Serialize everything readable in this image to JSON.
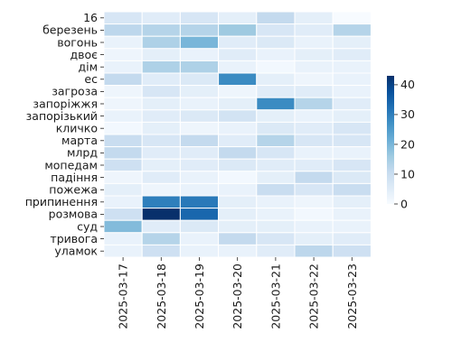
{
  "chart_data": {
    "type": "heatmap",
    "title": "",
    "xlabel": "",
    "ylabel": "",
    "x": [
      "2025-03-17",
      "2025-03-18",
      "2025-03-19",
      "2025-03-20",
      "2025-03-21",
      "2025-03-22",
      "2025-03-23"
    ],
    "y": [
      "16",
      "березень",
      "вогонь",
      "двоє",
      "дім",
      "ес",
      "загроза",
      "запоріжжя",
      "запорізький",
      "кличко",
      "марта",
      "млрд",
      "мопедам",
      "падіння",
      "пожежа",
      "припинення",
      "розмова",
      "суд",
      "тривога",
      "уламок"
    ],
    "values": [
      [
        7,
        5,
        7,
        4,
        11,
        4,
        0
      ],
      [
        12,
        13,
        13,
        16,
        7,
        5,
        13
      ],
      [
        3,
        14,
        20,
        5,
        6,
        3,
        4
      ],
      [
        2,
        4,
        3,
        5,
        3,
        4,
        5
      ],
      [
        3,
        14,
        14,
        3,
        1,
        3,
        3
      ],
      [
        11,
        5,
        6,
        28,
        4,
        2,
        3
      ],
      [
        2,
        7,
        4,
        2,
        5,
        5,
        3
      ],
      [
        2,
        4,
        3,
        4,
        28,
        13,
        5
      ],
      [
        3,
        5,
        6,
        8,
        4,
        3,
        4
      ],
      [
        1,
        4,
        2,
        3,
        6,
        5,
        7
      ],
      [
        10,
        7,
        11,
        5,
        13,
        7,
        7
      ],
      [
        11,
        5,
        5,
        11,
        7,
        3,
        3
      ],
      [
        9,
        4,
        5,
        6,
        5,
        5,
        7
      ],
      [
        2,
        5,
        3,
        1,
        4,
        11,
        6
      ],
      [
        4,
        2,
        3,
        3,
        10,
        7,
        10
      ],
      [
        3,
        30,
        31,
        4,
        3,
        2,
        4
      ],
      [
        9,
        43,
        34,
        4,
        3,
        1,
        3
      ],
      [
        19,
        5,
        6,
        4,
        4,
        3,
        3
      ],
      [
        3,
        13,
        3,
        11,
        7,
        4,
        5
      ],
      [
        3,
        9,
        3,
        3,
        5,
        12,
        9
      ]
    ],
    "colorbar": {
      "min": 0,
      "max": 43,
      "ticks": [
        0,
        10,
        20,
        30,
        40
      ]
    },
    "colormap": "Blues",
    "cell_border_color": "#ffffff"
  }
}
